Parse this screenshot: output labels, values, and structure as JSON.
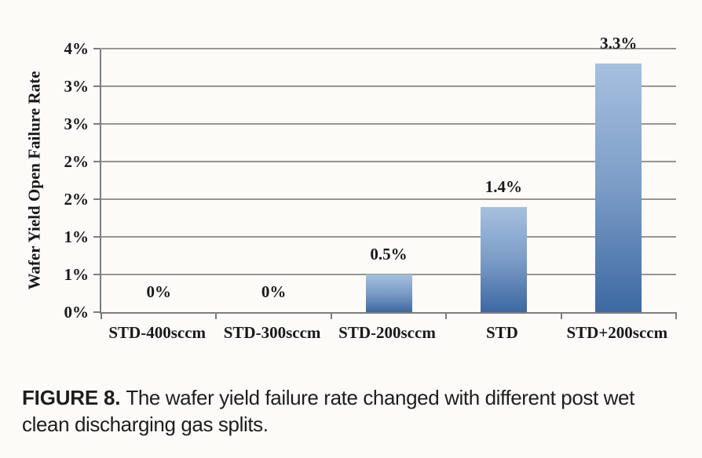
{
  "figure": {
    "caption_label": "FIGURE 8.",
    "caption_text": "The wafer yield failure rate changed with different post wet clean discharging gas splits."
  },
  "chart_data": {
    "type": "bar",
    "title": "",
    "xlabel": "",
    "ylabel": "Wafer Yield Open Failure Rate",
    "categories": [
      "STD-400sccm",
      "STD-300sccm",
      "STD-200sccm",
      "STD",
      "STD+200sccm"
    ],
    "values": [
      0,
      0,
      0.5,
      1.4,
      3.3
    ],
    "value_labels": [
      "0%",
      "0%",
      "0.5%",
      "1.4%",
      "3.3%"
    ],
    "ylim": [
      0,
      3.5
    ],
    "ytick_values": [
      0,
      0.5,
      1,
      1.5,
      2,
      2.5,
      3,
      3.5
    ],
    "ytick_labels": [
      "0%",
      "1%",
      "1%",
      "2%",
      "2%",
      "3%",
      "3%",
      "4%"
    ],
    "grid": "horizontal",
    "legend": "none",
    "colors": {
      "bar_top": "#a6c0df",
      "bar_bottom": "#3d68a2",
      "gridline": "#979590",
      "axis": "#7d7d7d",
      "text": "#191919",
      "background": "#fcfbf8"
    }
  }
}
